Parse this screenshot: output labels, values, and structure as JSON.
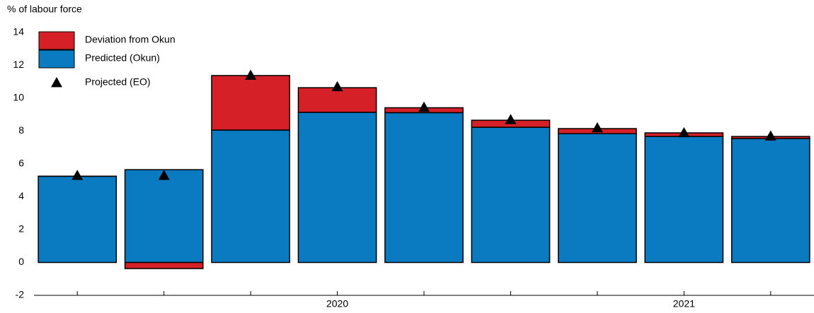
{
  "chart_data": {
    "type": "bar",
    "stacked": true,
    "y_label": "% of labour force",
    "categories": [
      null,
      null,
      null,
      "2020",
      null,
      null,
      null,
      "2021",
      null
    ],
    "series": [
      {
        "name": "Deviation from Okun",
        "color": "#d62027",
        "type": "bar",
        "values": [
          0.0,
          -0.37,
          3.32,
          1.5,
          0.3,
          0.43,
          0.31,
          0.22,
          0.13
        ]
      },
      {
        "name": "Predicted (Okun)",
        "color": "#0a7bc1",
        "type": "bar",
        "values": [
          5.25,
          5.65,
          8.06,
          9.14,
          9.12,
          8.23,
          7.84,
          7.67,
          7.54
        ]
      },
      {
        "name": "Projected (EO)",
        "color": "#000000",
        "type": "scatter",
        "marker": "triangle",
        "values": [
          5.3,
          5.3,
          11.4,
          10.7,
          9.45,
          8.7,
          8.2,
          7.9,
          7.7
        ]
      }
    ],
    "ylim": [
      -2,
      14
    ],
    "yticks": [
      -2,
      0,
      2,
      4,
      6,
      8,
      10,
      12,
      14
    ],
    "grid": false,
    "legend": "top-left"
  }
}
